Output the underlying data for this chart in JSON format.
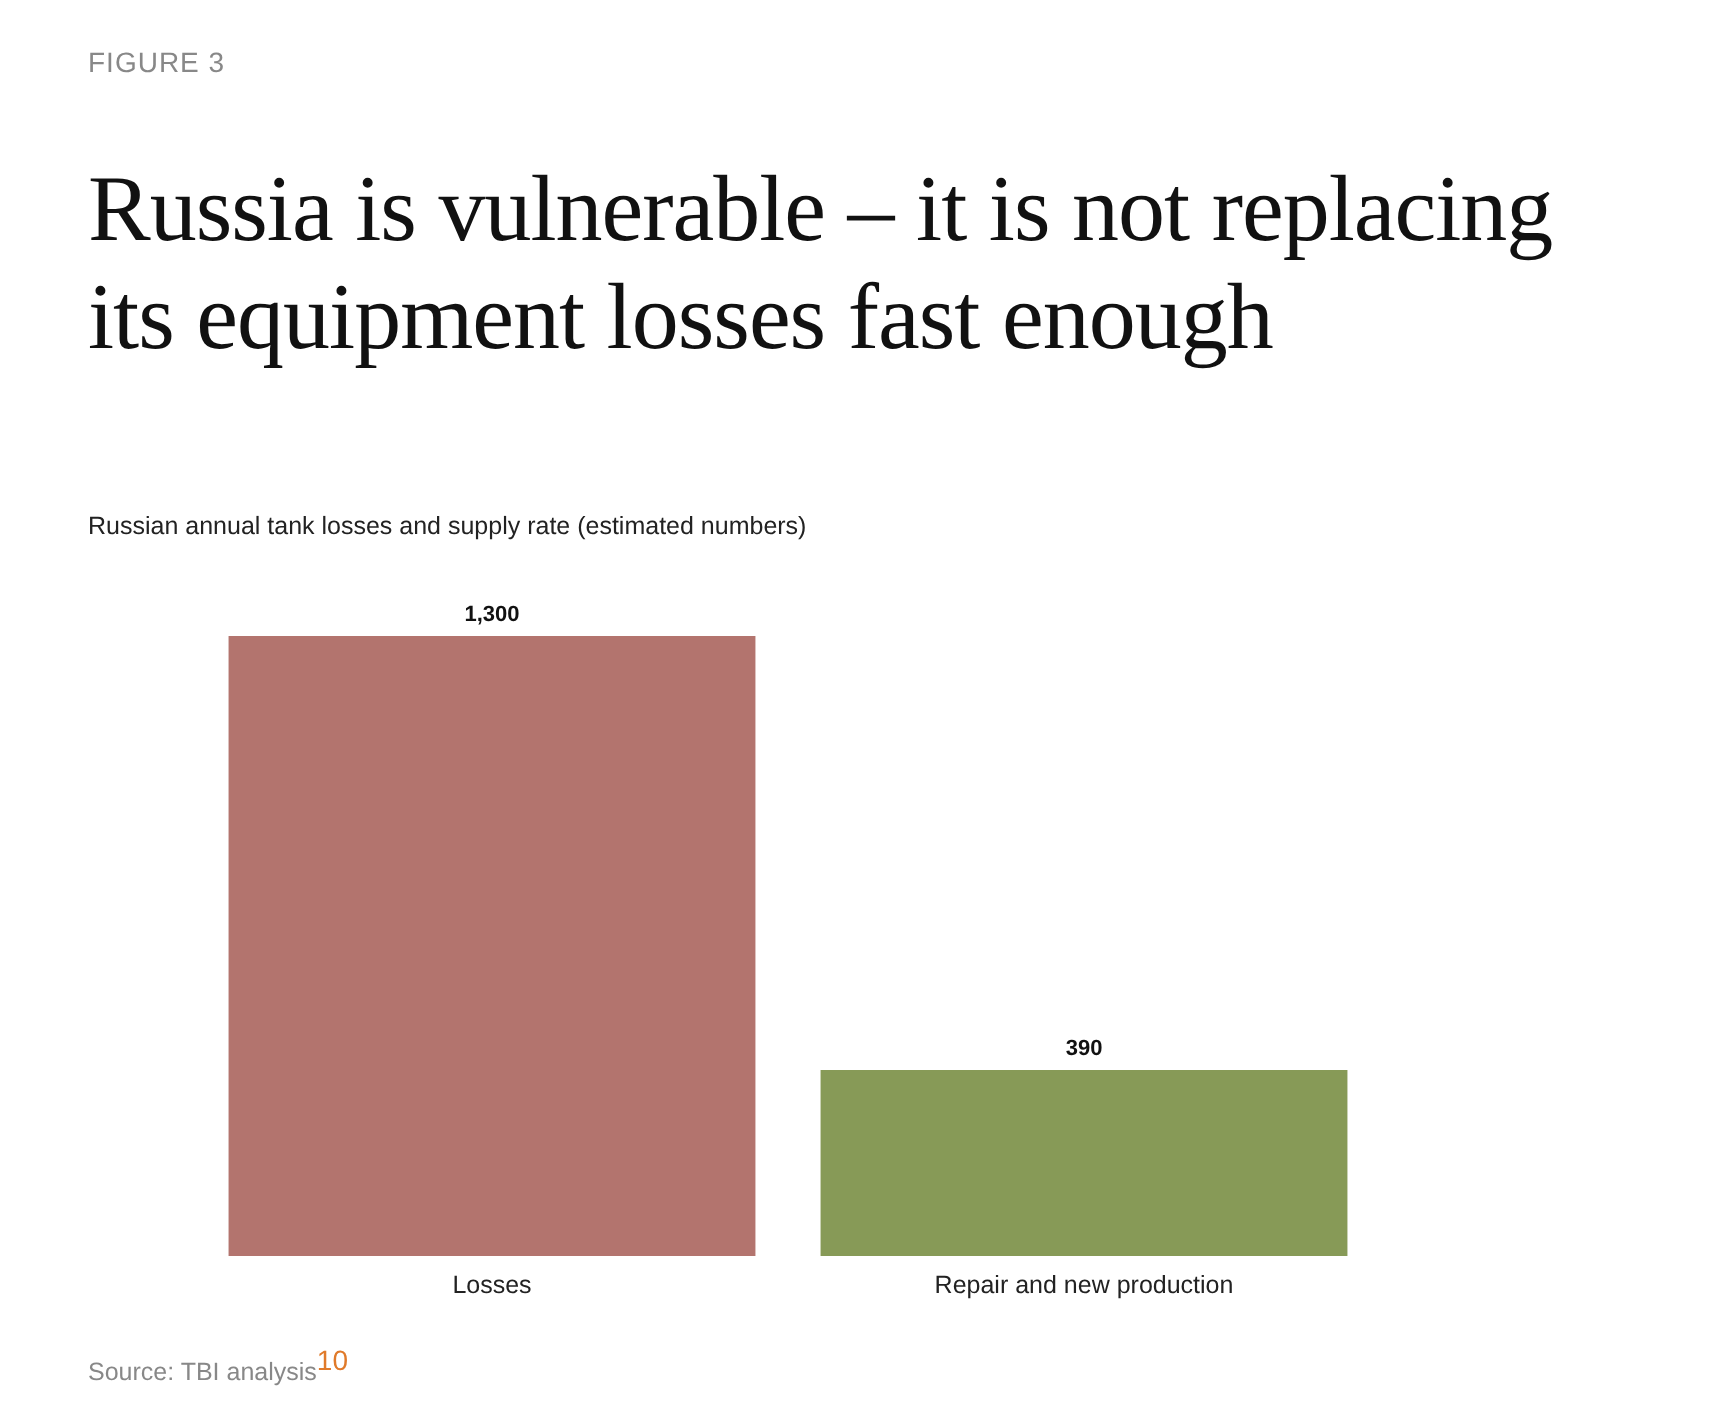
{
  "chart_data": {
    "type": "bar",
    "title": "Russia is vulnerable – it is not replacing its equipment losses fast enough",
    "subtitle": "Russian annual tank losses and supply rate (estimated numbers)",
    "annotations": [
      "FIGURE 3",
      "Source: TBI analysis$^{10}$"
    ],
    "categories": [
      "Losses",
      "Repair and new production"
    ],
    "values": [
      1300,
      390
    ],
    "colors": [
      "#b3746e",
      "#879a57"
    ],
    "value_labels": [
      "1,300",
      "390"
    ]
  }
}
